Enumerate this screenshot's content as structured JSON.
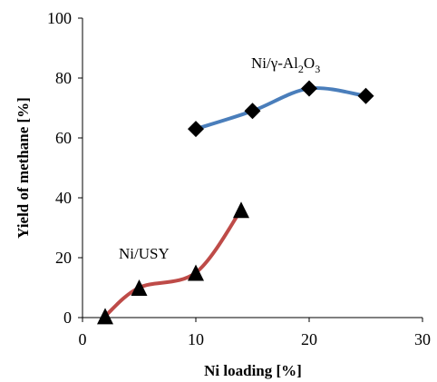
{
  "chart_data": {
    "type": "scatter",
    "xlabel": "Ni loading [%]",
    "ylabel": "Yield of methane [%]",
    "xlim": [
      0,
      30
    ],
    "ylim": [
      0,
      100
    ],
    "xticks": [
      "0",
      "10",
      "20",
      "30"
    ],
    "yticks": [
      "0",
      "20",
      "40",
      "60",
      "80",
      "100"
    ],
    "grid": false,
    "series": [
      {
        "name": "Ni/γ-Al2O3",
        "marker": "diamond",
        "line_color": "#4a7ebb",
        "marker_color": "#000000",
        "x": [
          10,
          15,
          20,
          25
        ],
        "y": [
          63,
          69,
          76.5,
          74
        ]
      },
      {
        "name": "Ni/USY",
        "marker": "triangle",
        "line_color": "#be4b48",
        "marker_color": "#000000",
        "x": [
          2,
          5,
          10,
          14
        ],
        "y": [
          0.5,
          10,
          15,
          36
        ]
      }
    ],
    "annotations": [
      {
        "series": 0,
        "text_main": "Ni/γ-Al",
        "sub1": "2",
        "mid": "O",
        "sub2": "3"
      },
      {
        "series": 1,
        "text_main": "Ni/USY"
      }
    ]
  }
}
